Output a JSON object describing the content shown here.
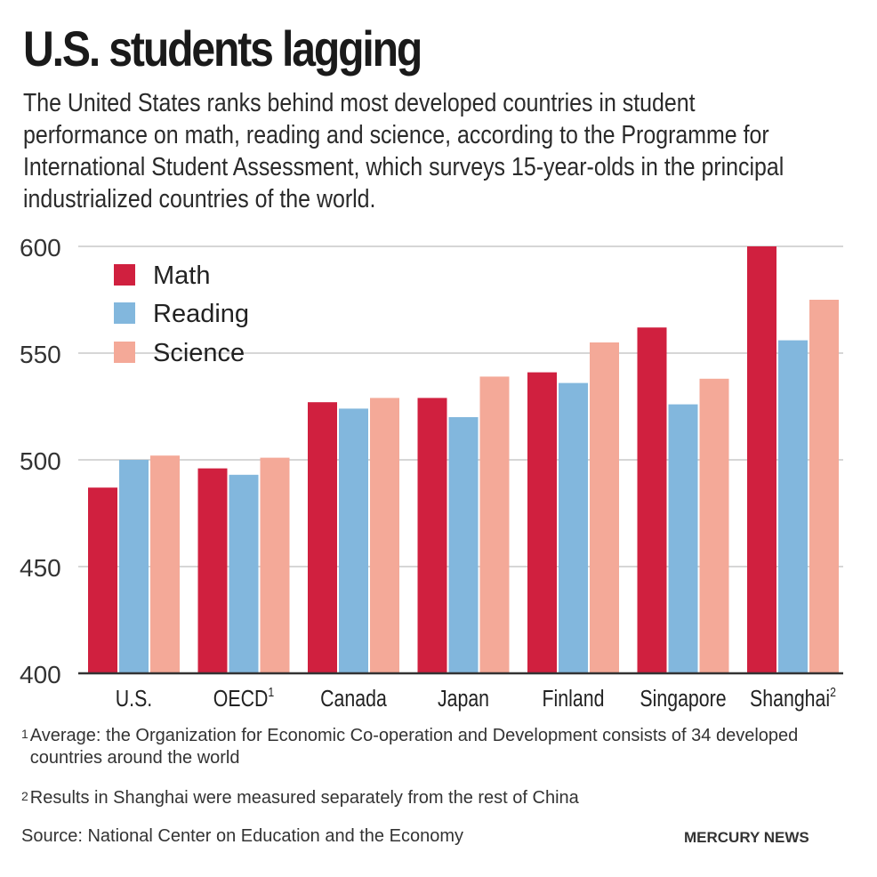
{
  "title": "U.S. students lagging",
  "subtitle": "The United States ranks behind most developed countries in student performance on math, reading and science, according to the Programme for International Student Assessment, which surveys 15-year-olds in the principal industrialized countries of the world.",
  "colors": {
    "math": "#d0203f",
    "reading": "#82b7dd",
    "science": "#f4a998",
    "grid": "#c8c8c8",
    "axis": "#333333"
  },
  "chart_data": {
    "type": "bar",
    "title": "U.S. students lagging",
    "xlabel": "",
    "ylabel": "",
    "ylim": [
      400,
      600
    ],
    "yticks": [
      400,
      450,
      500,
      550,
      600
    ],
    "grid": true,
    "legend_position": "top-left",
    "categories": [
      "U.S.",
      "OECD",
      "Canada",
      "Japan",
      "Finland",
      "Singapore",
      "Shanghai"
    ],
    "category_superscripts": [
      "",
      "1",
      "",
      "",
      "",
      "",
      "2"
    ],
    "series": [
      {
        "name": "Math",
        "color": "#d0203f",
        "values": [
          487,
          496,
          527,
          529,
          541,
          562,
          600
        ]
      },
      {
        "name": "Reading",
        "color": "#82b7dd",
        "values": [
          500,
          493,
          524,
          520,
          536,
          526,
          556
        ]
      },
      {
        "name": "Science",
        "color": "#f4a998",
        "values": [
          502,
          501,
          529,
          539,
          555,
          538,
          575
        ]
      }
    ]
  },
  "footnotes": [
    {
      "mark": "1",
      "text": "Average: the Organization for Economic Co-operation and Development consists of 34 developed countries around the world"
    },
    {
      "mark": "2",
      "text": "Results in Shanghai were measured separately from the rest of China"
    }
  ],
  "source": "Source: National Center on Education and the Economy",
  "credit": "MERCURY NEWS"
}
